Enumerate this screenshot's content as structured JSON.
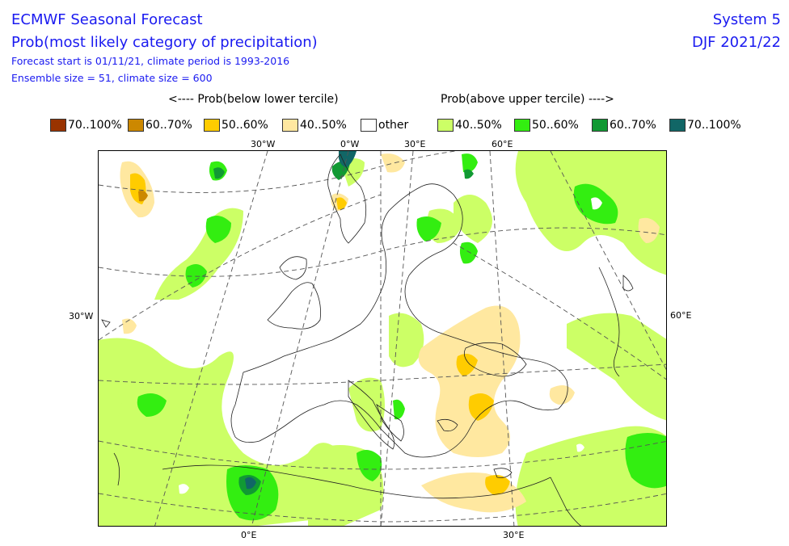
{
  "header": {
    "title": "ECMWF Seasonal Forecast",
    "subtitle": "Prob(most likely category of precipitation)",
    "forecast_start": "Forecast start is 01/11/21, climate period is 1993-2016",
    "ensemble": "Ensemble size = 51, climate size = 600",
    "system": "System 5",
    "period": "DJF 2021/22"
  },
  "legend": {
    "below_title": "<---- Prob(below lower tercile)",
    "above_title": "Prob(above upper tercile) ---->",
    "items": [
      {
        "label": "70..100%",
        "color": "#993300"
      },
      {
        "label": "60..70%",
        "color": "#cc8800"
      },
      {
        "label": "50..60%",
        "color": "#ffcc00"
      },
      {
        "label": "40..50%",
        "color": "#ffe8a0"
      },
      {
        "label": "other",
        "color": "#ffffff"
      },
      {
        "label": "40..50%",
        "color": "#ccff66"
      },
      {
        "label": "50..60%",
        "color": "#33ee11"
      },
      {
        "label": "60..70%",
        "color": "#119933"
      },
      {
        "label": "70..100%",
        "color": "#116666"
      }
    ]
  },
  "axis_labels": {
    "top": [
      "30°W",
      "0°W",
      "30°E",
      "60°E"
    ],
    "left": "30°W",
    "right": "60°E",
    "bottom": [
      "0°E",
      "30°E"
    ]
  }
}
